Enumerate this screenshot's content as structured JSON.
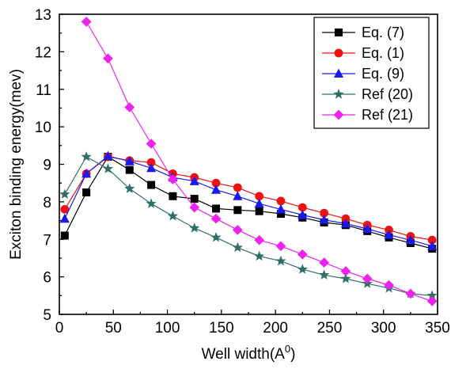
{
  "chart_data": {
    "type": "line",
    "title": "",
    "xlabel": "Well width(A",
    "xlabel_sup": "0",
    "xlabel_close": ")",
    "ylabel": "Exciton binding energy(mev)",
    "xlim": [
      0,
      350
    ],
    "ylim": [
      5,
      13
    ],
    "xticks": [
      0,
      50,
      100,
      150,
      200,
      250,
      300,
      350
    ],
    "yticks": [
      5,
      6,
      7,
      8,
      9,
      10,
      11,
      12,
      13
    ],
    "grid": false,
    "legend_position": "top-right",
    "series": [
      {
        "name": "Eq. (7)",
        "color": "#000000",
        "marker": "square",
        "x": [
          5,
          25,
          45,
          65,
          85,
          105,
          125,
          145,
          165,
          185,
          205,
          225,
          245,
          265,
          285,
          305,
          325,
          345
        ],
        "y": [
          7.1,
          8.25,
          9.2,
          8.85,
          8.45,
          8.15,
          8.08,
          7.82,
          7.78,
          7.75,
          7.68,
          7.58,
          7.45,
          7.38,
          7.22,
          7.05,
          6.9,
          6.75
        ]
      },
      {
        "name": "Eq. (1)",
        "color": "#ee1111",
        "marker": "circle",
        "x": [
          5,
          25,
          45,
          65,
          85,
          105,
          125,
          145,
          165,
          185,
          205,
          225,
          245,
          265,
          285,
          305,
          325,
          345
        ],
        "y": [
          7.8,
          8.75,
          9.2,
          9.1,
          9.05,
          8.75,
          8.65,
          8.5,
          8.38,
          8.15,
          8.02,
          7.85,
          7.7,
          7.55,
          7.38,
          7.25,
          7.08,
          6.98
        ]
      },
      {
        "name": "Eq. (9)",
        "color": "#1a1aee",
        "marker": "triangle",
        "x": [
          5,
          25,
          45,
          65,
          85,
          105,
          125,
          145,
          165,
          185,
          205,
          225,
          245,
          265,
          285,
          305,
          325,
          345
        ],
        "y": [
          7.55,
          8.75,
          9.22,
          9.08,
          8.9,
          8.65,
          8.55,
          8.32,
          8.15,
          7.95,
          7.8,
          7.65,
          7.52,
          7.42,
          7.28,
          7.12,
          6.98,
          6.82
        ]
      },
      {
        "name": "Ref (20)",
        "color": "#2e7065",
        "marker": "star",
        "x": [
          5,
          25,
          45,
          65,
          85,
          105,
          125,
          145,
          165,
          185,
          205,
          225,
          245,
          265,
          285,
          305,
          325,
          345
        ],
        "y": [
          8.2,
          9.2,
          8.88,
          8.35,
          7.95,
          7.62,
          7.3,
          7.05,
          6.78,
          6.55,
          6.42,
          6.2,
          6.05,
          5.95,
          5.82,
          5.7,
          5.55,
          5.5
        ]
      },
      {
        "name": "Ref (21)",
        "color": "#ee22ee",
        "marker": "diamond",
        "x": [
          25,
          45,
          65,
          85,
          105,
          125,
          145,
          165,
          185,
          205,
          225,
          245,
          265,
          285,
          305,
          325,
          345
        ],
        "y": [
          12.8,
          11.82,
          10.52,
          9.55,
          8.6,
          7.85,
          7.55,
          7.25,
          6.98,
          6.82,
          6.6,
          6.38,
          6.15,
          5.95,
          5.78,
          5.55,
          5.35
        ]
      }
    ]
  }
}
